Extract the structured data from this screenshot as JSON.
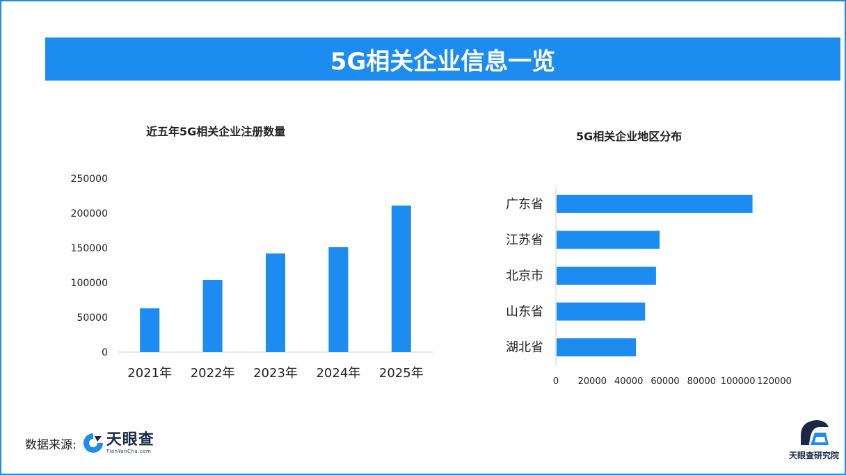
{
  "banner": {
    "title": "5G相关企业信息一览"
  },
  "footer": {
    "source_label": "数据来源:",
    "brand_name": "天眼查",
    "brand_domain": "TianYanCha.com",
    "institute_name": "天眼查研究院"
  },
  "colors": {
    "accent": "#1c8cf0",
    "brand_dark": "#1a2a45"
  },
  "chart_data": [
    {
      "type": "bar",
      "title": "近五年5G相关企业注册数量",
      "categories": [
        "2021年",
        "2022年",
        "2023年",
        "2024年",
        "2025年"
      ],
      "values": [
        63000,
        104000,
        142000,
        151000,
        211000
      ],
      "ylim": [
        0,
        250000
      ],
      "yticks": [
        0,
        50000,
        100000,
        150000,
        200000,
        250000
      ],
      "xlabel": "",
      "ylabel": "",
      "grid": false
    },
    {
      "type": "bar",
      "orientation": "horizontal",
      "title": "5G相关企业地区分布",
      "categories": [
        "广东省",
        "江苏省",
        "北京市",
        "山东省",
        "湖北省"
      ],
      "values": [
        108000,
        57000,
        55000,
        49000,
        44000
      ],
      "xlim": [
        0,
        120000
      ],
      "xticks": [
        0,
        20000,
        40000,
        60000,
        80000,
        100000,
        120000
      ],
      "xlabel": "",
      "ylabel": "",
      "grid": false
    }
  ]
}
